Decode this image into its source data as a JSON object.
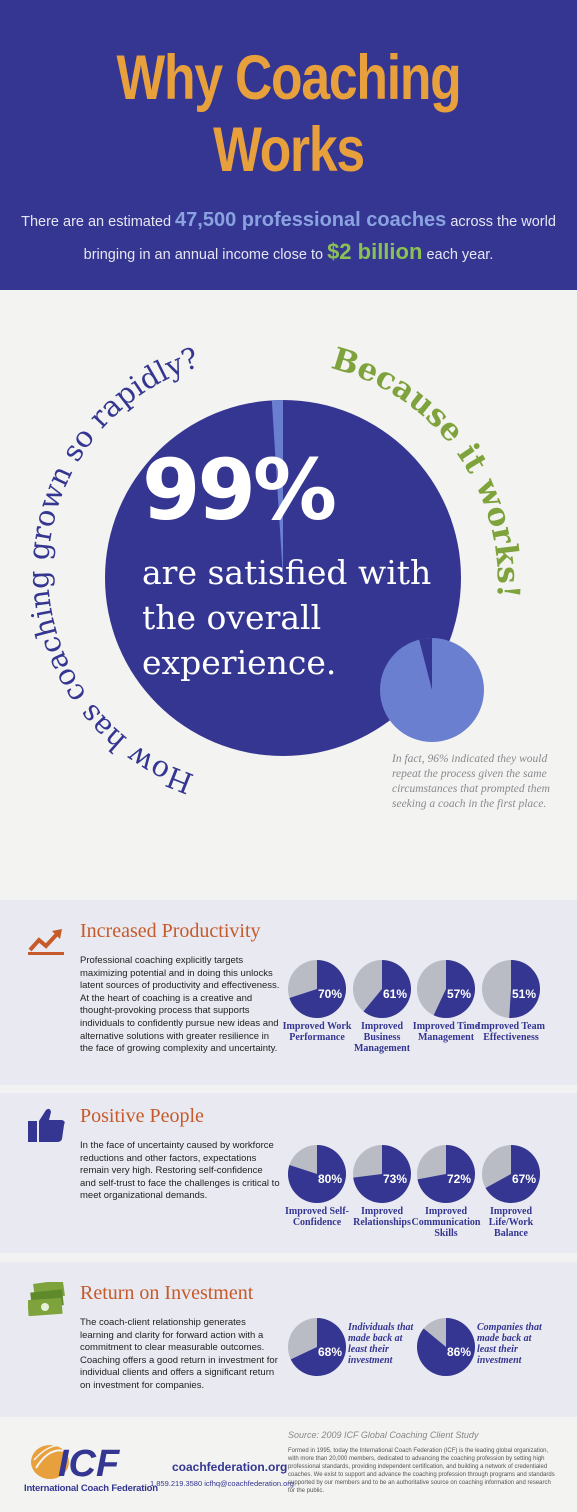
{
  "header": {
    "title": "Why Coaching Works",
    "intro_pre": "There are an estimated ",
    "intro_hl1": "47,500 professional coaches",
    "intro_mid": " across the world bringing in an annual income close to ",
    "intro_hl2": "$2 billion",
    "intro_post": " each year."
  },
  "hero": {
    "question": "How has coaching grown so rapidly?",
    "answer": "Because it works!",
    "stat": "99%",
    "stat_text": "are satisfied with the overall experience.",
    "note": "In fact, 96% indicated they would repeat the process given the same circumstances that prompted them seeking a coach in the first place.",
    "satisfied_fraction": 0.99,
    "repeat_fraction": 0.96
  },
  "sections": {
    "productivity": {
      "title": "Increased Productivity",
      "icon": "trend-up-chart-icon",
      "body": "Professional coaching explicitly targets maximizing potential and in doing this unlocks latent sources of productivity and effectiveness. At the heart of coaching is a creative and thought-provoking process that supports individuals to confidently pursue new ideas and alternative solutions with greater resilience in the face of growing complexity and uncertainty.",
      "stats": [
        {
          "value": 70,
          "label": "70%",
          "caption": "Improved Work Performance"
        },
        {
          "value": 61,
          "label": "61%",
          "caption": "Improved Business Management"
        },
        {
          "value": 57,
          "label": "57%",
          "caption": "Improved Time Management"
        },
        {
          "value": 51,
          "label": "51%",
          "caption": "Improved Team Effectiveness"
        }
      ]
    },
    "people": {
      "title": "Positive People",
      "icon": "thumbs-up-icon",
      "body": "In the face of uncertainty caused by workforce reductions and other factors, expectations remain very high. Restoring self-confidence and self-trust to face the challenges is critical to meet organizational demands.",
      "stats": [
        {
          "value": 80,
          "label": "80%",
          "caption": "Improved Self-Confidence"
        },
        {
          "value": 73,
          "label": "73%",
          "caption": "Improved Relationships"
        },
        {
          "value": 72,
          "label": "72%",
          "caption": "Improved Communication Skills"
        },
        {
          "value": 67,
          "label": "67%",
          "caption": "Improved Life/Work Balance"
        }
      ]
    },
    "roi": {
      "title": "Return on Investment",
      "icon": "money-stack-icon",
      "body": "The coach-client relationship generates learning and clarity for forward action with a commitment to clear measurable outcomes. Coaching offers a good return in investment for individual clients and offers a significant return on investment for companies.",
      "stats": [
        {
          "value": 68,
          "label": "68%",
          "caption": "Individuals that made back at least their investment"
        },
        {
          "value": 86,
          "label": "86%",
          "caption": "Companies that made back at least their investment"
        }
      ]
    }
  },
  "footer": {
    "source": "Source: 2009 ICF Global Coaching Client Study",
    "logo_text": "ICF",
    "org_name": "International Coach Federation",
    "site": "coachfederation.org",
    "contact": "1.859.219.3580   icfhq@coachfederation.org",
    "about": "Formed in 1995, today the International Coach Federation (ICF) is the leading global organization, with more than 20,000 members, dedicated to advancing the coaching profession by setting high professional standards, providing independent certification, and building a network of credentialed coaches. We exist to support and advance the coaching profession through programs and standards supported by our members and to be an authoritative source on coaching information and research for the public."
  },
  "colors": {
    "navy": "#343691",
    "orange": "#e8a03c",
    "green": "#7fa33c",
    "light_blue": "#6a7fcf",
    "grey_slice": "#b9bcc4",
    "rust": "#c65a2a"
  }
}
